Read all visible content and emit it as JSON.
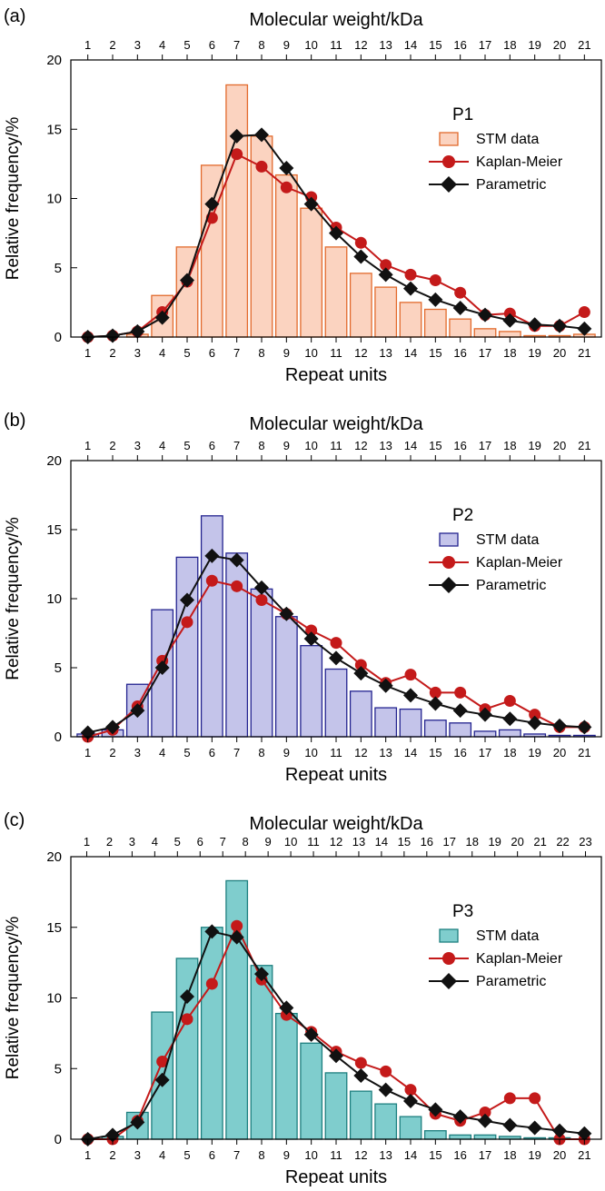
{
  "chart_data": [
    {
      "type": "bar",
      "panel_label": "(a)",
      "top_axis_label": "Molecular weight/kDa",
      "top_ticks": [
        "1",
        "2",
        "3",
        "4",
        "5",
        "6",
        "7",
        "8",
        "9",
        "10",
        "11",
        "12",
        "13",
        "14",
        "15",
        "16",
        "17",
        "18",
        "19",
        "20",
        "21"
      ],
      "xlabel": "Repeat units",
      "ylabel": "Relative frequency/%",
      "ylim": [
        0,
        20
      ],
      "yticks": [
        0,
        5,
        10,
        15,
        20
      ],
      "categories": [
        "1",
        "2",
        "3",
        "4",
        "5",
        "6",
        "7",
        "8",
        "9",
        "10",
        "11",
        "12",
        "13",
        "14",
        "15",
        "16",
        "17",
        "18",
        "19",
        "20",
        "21"
      ],
      "legend_title": "P1",
      "legend": [
        "STM data",
        "Kaplan-Meier",
        "Parametric"
      ],
      "bar_fill": "#fbd3c0",
      "bar_stroke": "#e26a2c",
      "series": [
        {
          "name": "STM data",
          "kind": "bar",
          "values": [
            0,
            0,
            0.2,
            3.0,
            6.5,
            12.4,
            18.2,
            14.5,
            11.7,
            9.3,
            6.5,
            4.6,
            3.6,
            2.5,
            2.0,
            1.3,
            0.6,
            0.4,
            0.1,
            0.1,
            0.2
          ]
        },
        {
          "name": "Kaplan-Meier",
          "kind": "line",
          "color": "#c41a1a",
          "values": [
            0.0,
            0.1,
            0.4,
            1.8,
            4.0,
            8.6,
            13.2,
            12.3,
            10.8,
            10.1,
            7.9,
            6.8,
            5.2,
            4.5,
            4.1,
            3.2,
            1.6,
            1.7,
            0.8,
            0.8,
            1.8
          ]
        },
        {
          "name": "Parametric",
          "kind": "line",
          "color": "#111111",
          "values": [
            0.0,
            0.1,
            0.4,
            1.4,
            4.1,
            9.6,
            14.5,
            14.6,
            12.2,
            9.6,
            7.5,
            5.8,
            4.5,
            3.5,
            2.7,
            2.1,
            1.6,
            1.2,
            0.9,
            0.8,
            0.6
          ]
        }
      ]
    },
    {
      "type": "bar",
      "panel_label": "(b)",
      "top_axis_label": "Molecular weight/kDa",
      "top_ticks": [
        "1",
        "2",
        "3",
        "4",
        "5",
        "6",
        "7",
        "8",
        "9",
        "10",
        "11",
        "12",
        "13",
        "14",
        "15",
        "16",
        "17",
        "18",
        "19",
        "20",
        "21"
      ],
      "xlabel": "Repeat units",
      "ylabel": "Relative frequency/%",
      "ylim": [
        0,
        20
      ],
      "yticks": [
        0,
        5,
        10,
        15,
        20
      ],
      "categories": [
        "1",
        "2",
        "3",
        "4",
        "5",
        "6",
        "7",
        "8",
        "9",
        "10",
        "11",
        "12",
        "13",
        "14",
        "15",
        "16",
        "17",
        "18",
        "19",
        "20",
        "21"
      ],
      "legend_title": "P2",
      "legend": [
        "STM data",
        "Kaplan-Meier",
        "Parametric"
      ],
      "bar_fill": "#c4c4ea",
      "bar_stroke": "#23238f",
      "series": [
        {
          "name": "STM data",
          "kind": "bar",
          "values": [
            0.2,
            0.5,
            3.8,
            9.2,
            13.0,
            16.0,
            13.3,
            10.7,
            8.7,
            6.6,
            4.9,
            3.3,
            2.1,
            2.0,
            1.2,
            1.0,
            0.4,
            0.5,
            0.2,
            0.1,
            0.1
          ]
        },
        {
          "name": "Kaplan-Meier",
          "kind": "line",
          "color": "#c41a1a",
          "values": [
            0.0,
            0.5,
            2.2,
            5.5,
            8.3,
            11.3,
            10.9,
            9.9,
            8.9,
            7.7,
            6.8,
            5.2,
            3.9,
            4.5,
            3.2,
            3.2,
            2.0,
            2.6,
            1.6,
            0.7,
            0.7
          ]
        },
        {
          "name": "Parametric",
          "kind": "line",
          "color": "#111111",
          "values": [
            0.3,
            0.7,
            1.9,
            5.0,
            9.9,
            13.1,
            12.8,
            10.8,
            8.9,
            7.1,
            5.7,
            4.6,
            3.7,
            3.0,
            2.4,
            1.9,
            1.6,
            1.3,
            1.0,
            0.8,
            0.7
          ]
        }
      ]
    },
    {
      "type": "bar",
      "panel_label": "(c)",
      "top_axis_label": "Molecular weight/kDa",
      "top_ticks": [
        "1",
        "2",
        "3",
        "4",
        "5",
        "6",
        "7",
        "8",
        "9",
        "10",
        "11",
        "12",
        "13",
        "14",
        "15",
        "16",
        "17",
        "18",
        "19",
        "20",
        "21",
        "22",
        "23"
      ],
      "xlabel": "Repeat units",
      "ylabel": "Relative frequency/%",
      "ylim": [
        0,
        20
      ],
      "yticks": [
        0,
        5,
        10,
        15,
        20
      ],
      "categories": [
        "1",
        "2",
        "3",
        "4",
        "5",
        "6",
        "7",
        "8",
        "9",
        "10",
        "11",
        "12",
        "13",
        "14",
        "15",
        "16",
        "17",
        "18",
        "19",
        "20",
        "21"
      ],
      "legend_title": "P3",
      "legend": [
        "STM data",
        "Kaplan-Meier",
        "Parametric"
      ],
      "bar_fill": "#7fcdcd",
      "bar_stroke": "#1d7f7f",
      "series": [
        {
          "name": "STM data",
          "kind": "bar",
          "values": [
            0,
            0.2,
            1.9,
            9.0,
            12.8,
            15.0,
            18.3,
            12.3,
            8.9,
            6.8,
            4.7,
            3.4,
            2.5,
            1.6,
            0.6,
            0.3,
            0.3,
            0.2,
            0.1,
            0.1,
            0.0
          ]
        },
        {
          "name": "Kaplan-Meier",
          "kind": "line",
          "color": "#c41a1a",
          "values": [
            0.0,
            0.0,
            1.3,
            5.5,
            8.5,
            11.0,
            15.1,
            11.3,
            8.8,
            7.6,
            6.2,
            5.4,
            4.8,
            3.5,
            1.8,
            1.3,
            1.9,
            2.9,
            2.9,
            0.0,
            0.0
          ]
        },
        {
          "name": "Parametric",
          "kind": "line",
          "color": "#111111",
          "values": [
            0.0,
            0.3,
            1.2,
            4.2,
            10.1,
            14.7,
            14.3,
            11.7,
            9.3,
            7.4,
            5.9,
            4.5,
            3.5,
            2.7,
            2.1,
            1.6,
            1.3,
            1.0,
            0.8,
            0.6,
            0.4
          ]
        }
      ]
    }
  ]
}
